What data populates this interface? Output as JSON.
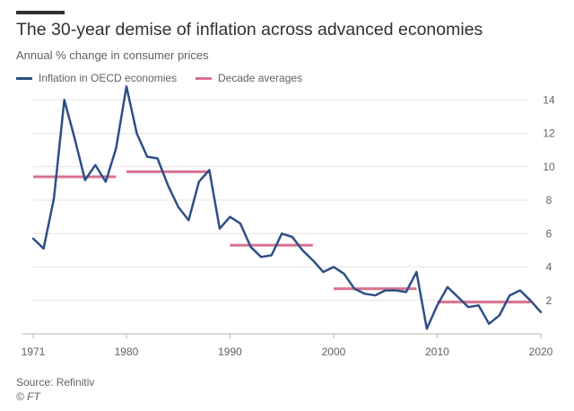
{
  "title": "The 30-year demise of inflation across advanced economies",
  "subtitle": "Annual % change in consumer prices",
  "source": "Source: Refinitiv",
  "credit": "© FT",
  "colors": {
    "series_line": "#2e4f86",
    "averages": "#d9738f",
    "gridline": "#e9e4df",
    "axis_text": "#66605c"
  },
  "chart_data": {
    "type": "line",
    "title": "The 30-year demise of inflation across advanced economies",
    "subtitle": "Annual % change in consumer prices",
    "xlabel": "",
    "ylabel": "",
    "xlim": [
      1971,
      2020
    ],
    "ylim": [
      0,
      14.5
    ],
    "y_ticks": [
      2,
      4,
      6,
      8,
      10,
      12,
      14
    ],
    "x_ticks": [
      1971,
      1980,
      1990,
      2000,
      2010,
      2020
    ],
    "grid": true,
    "legend": "top-left",
    "series": [
      {
        "name": "Inflation in OECD economies",
        "kind": "line",
        "x": [
          1971,
          1972,
          1973,
          1974,
          1975,
          1976,
          1977,
          1978,
          1979,
          1980,
          1981,
          1982,
          1983,
          1984,
          1985,
          1986,
          1987,
          1988,
          1989,
          1990,
          1991,
          1992,
          1993,
          1994,
          1995,
          1996,
          1997,
          1998,
          1999,
          2000,
          2001,
          2002,
          2003,
          2004,
          2005,
          2006,
          2007,
          2008,
          2009,
          2010,
          2011,
          2012,
          2013,
          2014,
          2015,
          2016,
          2017,
          2018,
          2019,
          2020
        ],
        "y": [
          5.7,
          5.1,
          8.1,
          14.0,
          11.7,
          9.2,
          10.1,
          9.1,
          11.1,
          14.8,
          12.0,
          10.6,
          10.5,
          8.9,
          7.6,
          6.8,
          9.1,
          9.8,
          6.3,
          7.0,
          6.6,
          5.2,
          4.6,
          4.7,
          6.0,
          5.8,
          5.0,
          4.4,
          3.7,
          4.0,
          3.6,
          2.7,
          2.4,
          2.3,
          2.6,
          2.6,
          2.5,
          3.7,
          0.3,
          1.7,
          2.8,
          2.2,
          1.6,
          1.7,
          0.6,
          1.1,
          2.3,
          2.6,
          2.0,
          1.3
        ]
      },
      {
        "name": "Decade averages",
        "kind": "segments",
        "segments": [
          {
            "x": [
              1971,
              1979
            ],
            "y": 9.4
          },
          {
            "x": [
              1980,
              1988
            ],
            "y": 9.7
          },
          {
            "x": [
              1990,
              1998
            ],
            "y": 5.3
          },
          {
            "x": [
              2000,
              2008
            ],
            "y": 2.7
          },
          {
            "x": [
              2010,
              2019
            ],
            "y": 1.9
          }
        ]
      }
    ]
  }
}
